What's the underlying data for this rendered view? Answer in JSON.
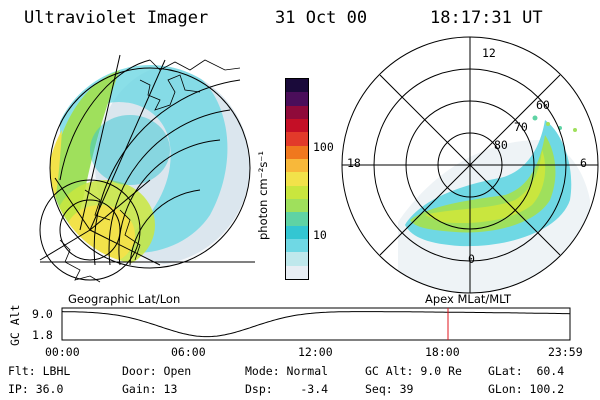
{
  "header": {
    "instrument": "Ultraviolet Imager",
    "date": "31 Oct 00",
    "time": "18:17:31 UT"
  },
  "colorbar": {
    "unit_label": "photon cm⁻²s⁻¹",
    "tick_labels": [
      "100",
      "10"
    ],
    "colors": [
      "#e8eef4",
      "#bfe8ec",
      "#6fd8e4",
      "#33c6d2",
      "#5fd3a4",
      "#9fe05c",
      "#c9e63e",
      "#f2e24a",
      "#f8b83a",
      "#f0781e",
      "#e23a2a",
      "#c40f26",
      "#8f0a3a",
      "#4a0e5a",
      "#1a0a3a"
    ]
  },
  "left_panel": {
    "caption": "Geographic Lat/Lon"
  },
  "right_panel": {
    "caption": "Apex MLat/MLT",
    "mlt_labels": {
      "top": "12",
      "left": "18",
      "right": "6",
      "bottom": "0"
    },
    "lat_labels": [
      "60",
      "70",
      "80"
    ]
  },
  "timeline": {
    "ylabel": "GC Alt",
    "y_ticks": [
      "9.0",
      "1.8"
    ],
    "x_ticks": [
      "00:00",
      "06:00",
      "12:00",
      "18:00",
      "23:59"
    ],
    "marker_color": "#e0141e"
  },
  "status": {
    "flt": "Flt: LBHL",
    "ip": "IP: 36.0",
    "door": "Door: Open",
    "gain": "Gain: 13",
    "mode": "Mode: Normal",
    "dsp": "Dsp:    -3.4",
    "gc_alt": "GC Alt: 9.0 Re",
    "seq": "Seq: 39",
    "glat": "GLat:  60.4",
    "glon": "GLon: 100.2"
  }
}
